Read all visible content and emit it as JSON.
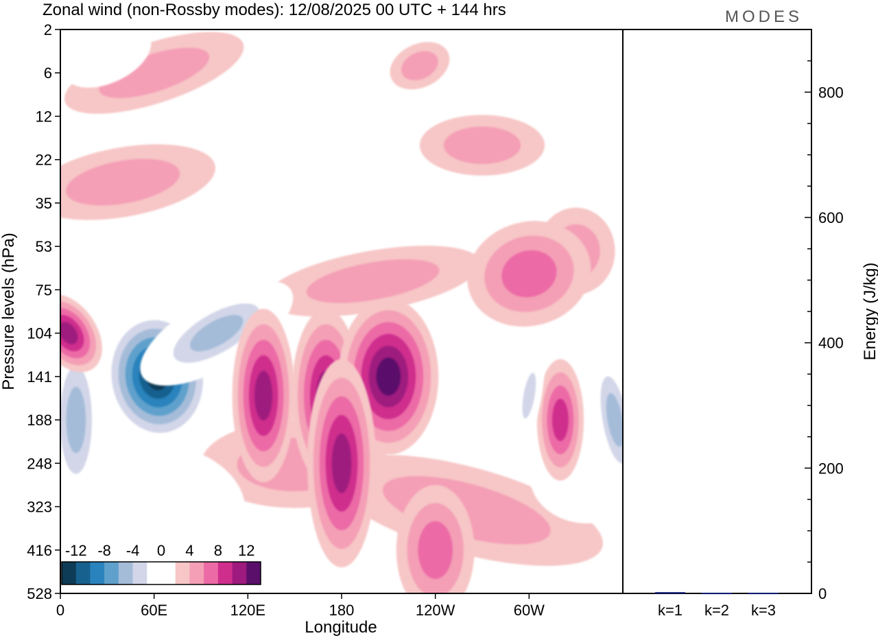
{
  "chart_data": [
    {
      "type": "heatmap",
      "title": "Zonal wind (non-Rossby modes):  12/08/2025  00 UTC  + 144 hrs",
      "xlabel": "Longitude",
      "ylabel": "Pressure levels (hPa)",
      "x_ticks": [
        "0",
        "60E",
        "120E",
        "180",
        "120W",
        "60W"
      ],
      "x_tick_degrees": [
        0,
        60,
        120,
        180,
        240,
        300
      ],
      "xlim": [
        0,
        360
      ],
      "y_ticks": [
        "2",
        "6",
        "12",
        "22",
        "35",
        "53",
        "75",
        "104",
        "141",
        "188",
        "248",
        "323",
        "416",
        "528"
      ],
      "colorbar": {
        "labels": [
          "-12",
          "-8",
          "-4",
          "0",
          "4",
          "8",
          "12"
        ],
        "levels": [
          -16,
          -14,
          -12,
          -10,
          -8,
          -6,
          -4,
          -2,
          0,
          2,
          4,
          6,
          8,
          10,
          12,
          14,
          16
        ],
        "colors": [
          "#0e3b55",
          "#17618f",
          "#2a83bd",
          "#5fa1cc",
          "#a5bcd9",
          "#d2d6e8",
          "#ffffff",
          "#ffffff",
          "#f7c6c6",
          "#f49fb6",
          "#ec6aa6",
          "#cf2e8d",
          "#9e1a7e",
          "#5a0f6b"
        ]
      },
      "features": [
        {
          "lon": 62,
          "level": 141,
          "value": -16
        },
        {
          "lon": 100,
          "level": 104,
          "value": -8
        },
        {
          "lon": 10,
          "level": 188,
          "value": -8
        },
        {
          "lon": 130,
          "level": 160,
          "value": 9
        },
        {
          "lon": 170,
          "level": 160,
          "value": 9
        },
        {
          "lon": 210,
          "level": 141,
          "value": 12
        },
        {
          "lon": 180,
          "level": 248,
          "value": 9
        },
        {
          "lon": 240,
          "level": 416,
          "value": 6
        },
        {
          "lon": 300,
          "level": 66,
          "value": 6
        },
        {
          "lon": 5,
          "level": 104,
          "value": 9
        },
        {
          "lon": 320,
          "level": 188,
          "value": 8
        },
        {
          "lon": 300,
          "level": 160,
          "value": -6
        },
        {
          "lon": 355,
          "level": 188,
          "value": -8
        }
      ]
    },
    {
      "type": "bar",
      "categories": [
        "k=1",
        "k=2",
        "k=3"
      ],
      "values": [
        2,
        1,
        1
      ],
      "ylabel": "Energy (J/kg)",
      "ylim": [
        0,
        900
      ],
      "y_ticks": [
        0,
        200,
        400,
        600,
        800
      ]
    }
  ],
  "logo": {
    "text": "MODES"
  },
  "colors": {
    "bar": "#101a7a",
    "logo": "#555555"
  }
}
